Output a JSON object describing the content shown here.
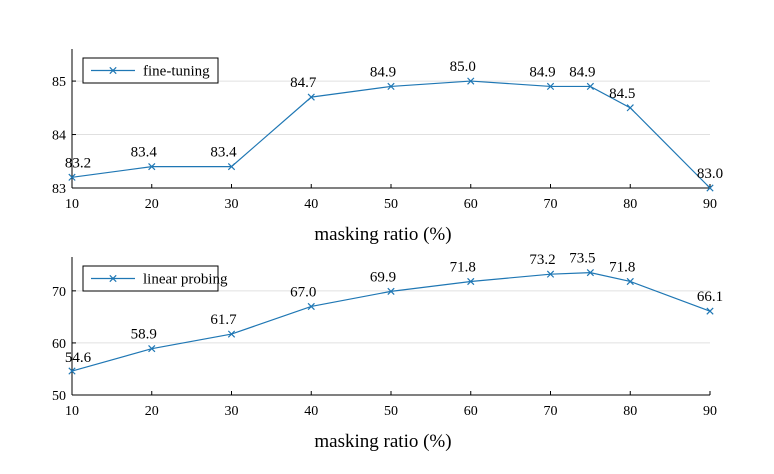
{
  "colors": {
    "series": "#1f77b4",
    "grid": "#e0e0e0",
    "axis": "#000000"
  },
  "chart_data": [
    {
      "type": "line",
      "xlabel": "masking ratio (%)",
      "ylabel": "",
      "xlim": [
        10,
        90
      ],
      "ylim": [
        83,
        85.6
      ],
      "xticks": [
        10,
        20,
        30,
        40,
        50,
        60,
        70,
        80,
        90
      ],
      "yticks": [
        83,
        84,
        85
      ],
      "grid": "horizontal",
      "legend": "top-left",
      "series": [
        {
          "name": "fine-tuning",
          "marker": "x",
          "x": [
            10,
            20,
            30,
            40,
            50,
            60,
            70,
            75,
            80,
            90
          ],
          "y": [
            83.2,
            83.4,
            83.4,
            84.7,
            84.9,
            85.0,
            84.9,
            84.9,
            84.5,
            83.0
          ],
          "labels": [
            "83.2",
            "83.4",
            "83.4",
            "84.7",
            "84.9",
            "85.0",
            "84.9",
            "84.9",
            "84.5",
            "83.0"
          ]
        }
      ]
    },
    {
      "type": "line",
      "xlabel": "masking ratio (%)",
      "ylabel": "",
      "xlim": [
        10,
        90
      ],
      "ylim": [
        50,
        76.5
      ],
      "xticks": [
        10,
        20,
        30,
        40,
        50,
        60,
        70,
        80,
        90
      ],
      "yticks": [
        50,
        60,
        70
      ],
      "grid": "horizontal",
      "legend": "top-left",
      "series": [
        {
          "name": "linear probing",
          "marker": "x",
          "x": [
            10,
            20,
            30,
            40,
            50,
            60,
            70,
            75,
            80,
            90
          ],
          "y": [
            54.6,
            58.9,
            61.7,
            67.0,
            69.9,
            71.8,
            73.2,
            73.5,
            71.8,
            66.1
          ],
          "labels": [
            "54.6",
            "58.9",
            "61.7",
            "67.0",
            "69.9",
            "71.8",
            "73.2",
            "73.5",
            "71.8",
            "66.1"
          ]
        }
      ]
    }
  ]
}
